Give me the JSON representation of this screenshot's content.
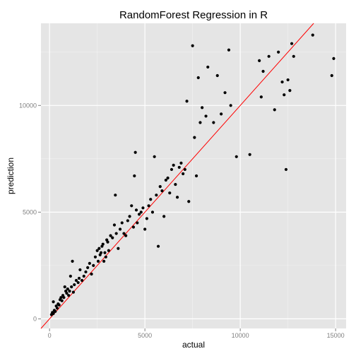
{
  "chart_data": {
    "type": "scatter",
    "title": "RandomForest Regression in R",
    "xlabel": "actual",
    "ylabel": "prediction",
    "xlim": [
      -450,
      15550
    ],
    "ylim": [
      -450,
      13850
    ],
    "x_ticks": [
      0,
      5000,
      10000,
      15000
    ],
    "x_tick_labels": [
      "0",
      "5000",
      "10000",
      "15000"
    ],
    "y_ticks": [
      0,
      5000,
      10000
    ],
    "y_tick_labels": [
      "0",
      "5000",
      "10000"
    ],
    "grid": true,
    "legend": "none",
    "colors": {
      "panel_background": "#e5e5e5",
      "grid_major": "#ffffff",
      "grid_minor": "#f2f2f2",
      "points": "#000000",
      "reference_line": "#ff0000",
      "tick_labels": "#7f7f7f"
    },
    "reference_line": {
      "intercept": 0,
      "slope": 1,
      "color": "#ff0000"
    },
    "points": [
      [
        100,
        200
      ],
      [
        150,
        300
      ],
      [
        200,
        250
      ],
      [
        250,
        400
      ],
      [
        300,
        350
      ],
      [
        350,
        600
      ],
      [
        400,
        500
      ],
      [
        200,
        800
      ],
      [
        450,
        700
      ],
      [
        500,
        650
      ],
      [
        550,
        900
      ],
      [
        600,
        1000
      ],
      [
        650,
        850
      ],
      [
        700,
        1100
      ],
      [
        750,
        1000
      ],
      [
        800,
        1500
      ],
      [
        850,
        1300
      ],
      [
        900,
        1200
      ],
      [
        950,
        1400
      ],
      [
        1000,
        1100
      ],
      [
        1050,
        1300
      ],
      [
        1100,
        2000
      ],
      [
        1150,
        1500
      ],
      [
        1200,
        2700
      ],
      [
        1250,
        1250
      ],
      [
        1300,
        1600
      ],
      [
        1400,
        1800
      ],
      [
        1500,
        1700
      ],
      [
        1550,
        1900
      ],
      [
        1600,
        2300
      ],
      [
        1700,
        1800
      ],
      [
        1800,
        2000
      ],
      [
        1900,
        2200
      ],
      [
        2000,
        2400
      ],
      [
        2100,
        2600
      ],
      [
        2200,
        2100
      ],
      [
        2300,
        2500
      ],
      [
        2400,
        2900
      ],
      [
        2500,
        3200
      ],
      [
        2550,
        2700
      ],
      [
        2600,
        3300
      ],
      [
        2650,
        3000
      ],
      [
        2700,
        3100
      ],
      [
        2750,
        3400
      ],
      [
        2800,
        3500
      ],
      [
        2850,
        2700
      ],
      [
        2900,
        3100
      ],
      [
        2950,
        2900
      ],
      [
        3000,
        3700
      ],
      [
        3050,
        3600
      ],
      [
        3100,
        3200
      ],
      [
        3200,
        3900
      ],
      [
        3300,
        3800
      ],
      [
        3400,
        4400
      ],
      [
        3450,
        5800
      ],
      [
        3500,
        4000
      ],
      [
        3600,
        3300
      ],
      [
        3700,
        4200
      ],
      [
        3800,
        4500
      ],
      [
        3900,
        4000
      ],
      [
        4000,
        3900
      ],
      [
        4100,
        4600
      ],
      [
        4200,
        4800
      ],
      [
        4300,
        5300
      ],
      [
        4400,
        4300
      ],
      [
        4450,
        6700
      ],
      [
        4500,
        7800
      ],
      [
        4550,
        5100
      ],
      [
        4600,
        4500
      ],
      [
        4700,
        4900
      ],
      [
        4800,
        5000
      ],
      [
        4900,
        5200
      ],
      [
        5000,
        4200
      ],
      [
        5100,
        4700
      ],
      [
        5200,
        5300
      ],
      [
        5300,
        5600
      ],
      [
        5400,
        5000
      ],
      [
        5500,
        7600
      ],
      [
        5600,
        5800
      ],
      [
        5700,
        3400
      ],
      [
        5800,
        6200
      ],
      [
        5900,
        6000
      ],
      [
        6000,
        4800
      ],
      [
        6100,
        6500
      ],
      [
        6200,
        6600
      ],
      [
        6300,
        5900
      ],
      [
        6400,
        7000
      ],
      [
        6500,
        7200
      ],
      [
        6600,
        6300
      ],
      [
        6700,
        5700
      ],
      [
        6800,
        7100
      ],
      [
        6900,
        7300
      ],
      [
        7000,
        6800
      ],
      [
        7100,
        7000
      ],
      [
        7200,
        10200
      ],
      [
        7300,
        5500
      ],
      [
        7500,
        12800
      ],
      [
        7600,
        8500
      ],
      [
        7700,
        6700
      ],
      [
        7800,
        11300
      ],
      [
        7900,
        9200
      ],
      [
        8000,
        9900
      ],
      [
        8200,
        9500
      ],
      [
        8300,
        11800
      ],
      [
        8600,
        9200
      ],
      [
        8800,
        11400
      ],
      [
        9000,
        9600
      ],
      [
        9200,
        10600
      ],
      [
        9400,
        12600
      ],
      [
        9500,
        10000
      ],
      [
        9800,
        7600
      ],
      [
        10500,
        7700
      ],
      [
        11000,
        12100
      ],
      [
        11100,
        10400
      ],
      [
        11200,
        11600
      ],
      [
        11500,
        12300
      ],
      [
        11800,
        9800
      ],
      [
        12000,
        12500
      ],
      [
        12200,
        11100
      ],
      [
        12300,
        10500
      ],
      [
        12400,
        7000
      ],
      [
        12500,
        11200
      ],
      [
        12600,
        10700
      ],
      [
        12700,
        12900
      ],
      [
        12800,
        12300
      ],
      [
        13800,
        13300
      ],
      [
        14800,
        11400
      ],
      [
        14900,
        12200
      ]
    ]
  }
}
